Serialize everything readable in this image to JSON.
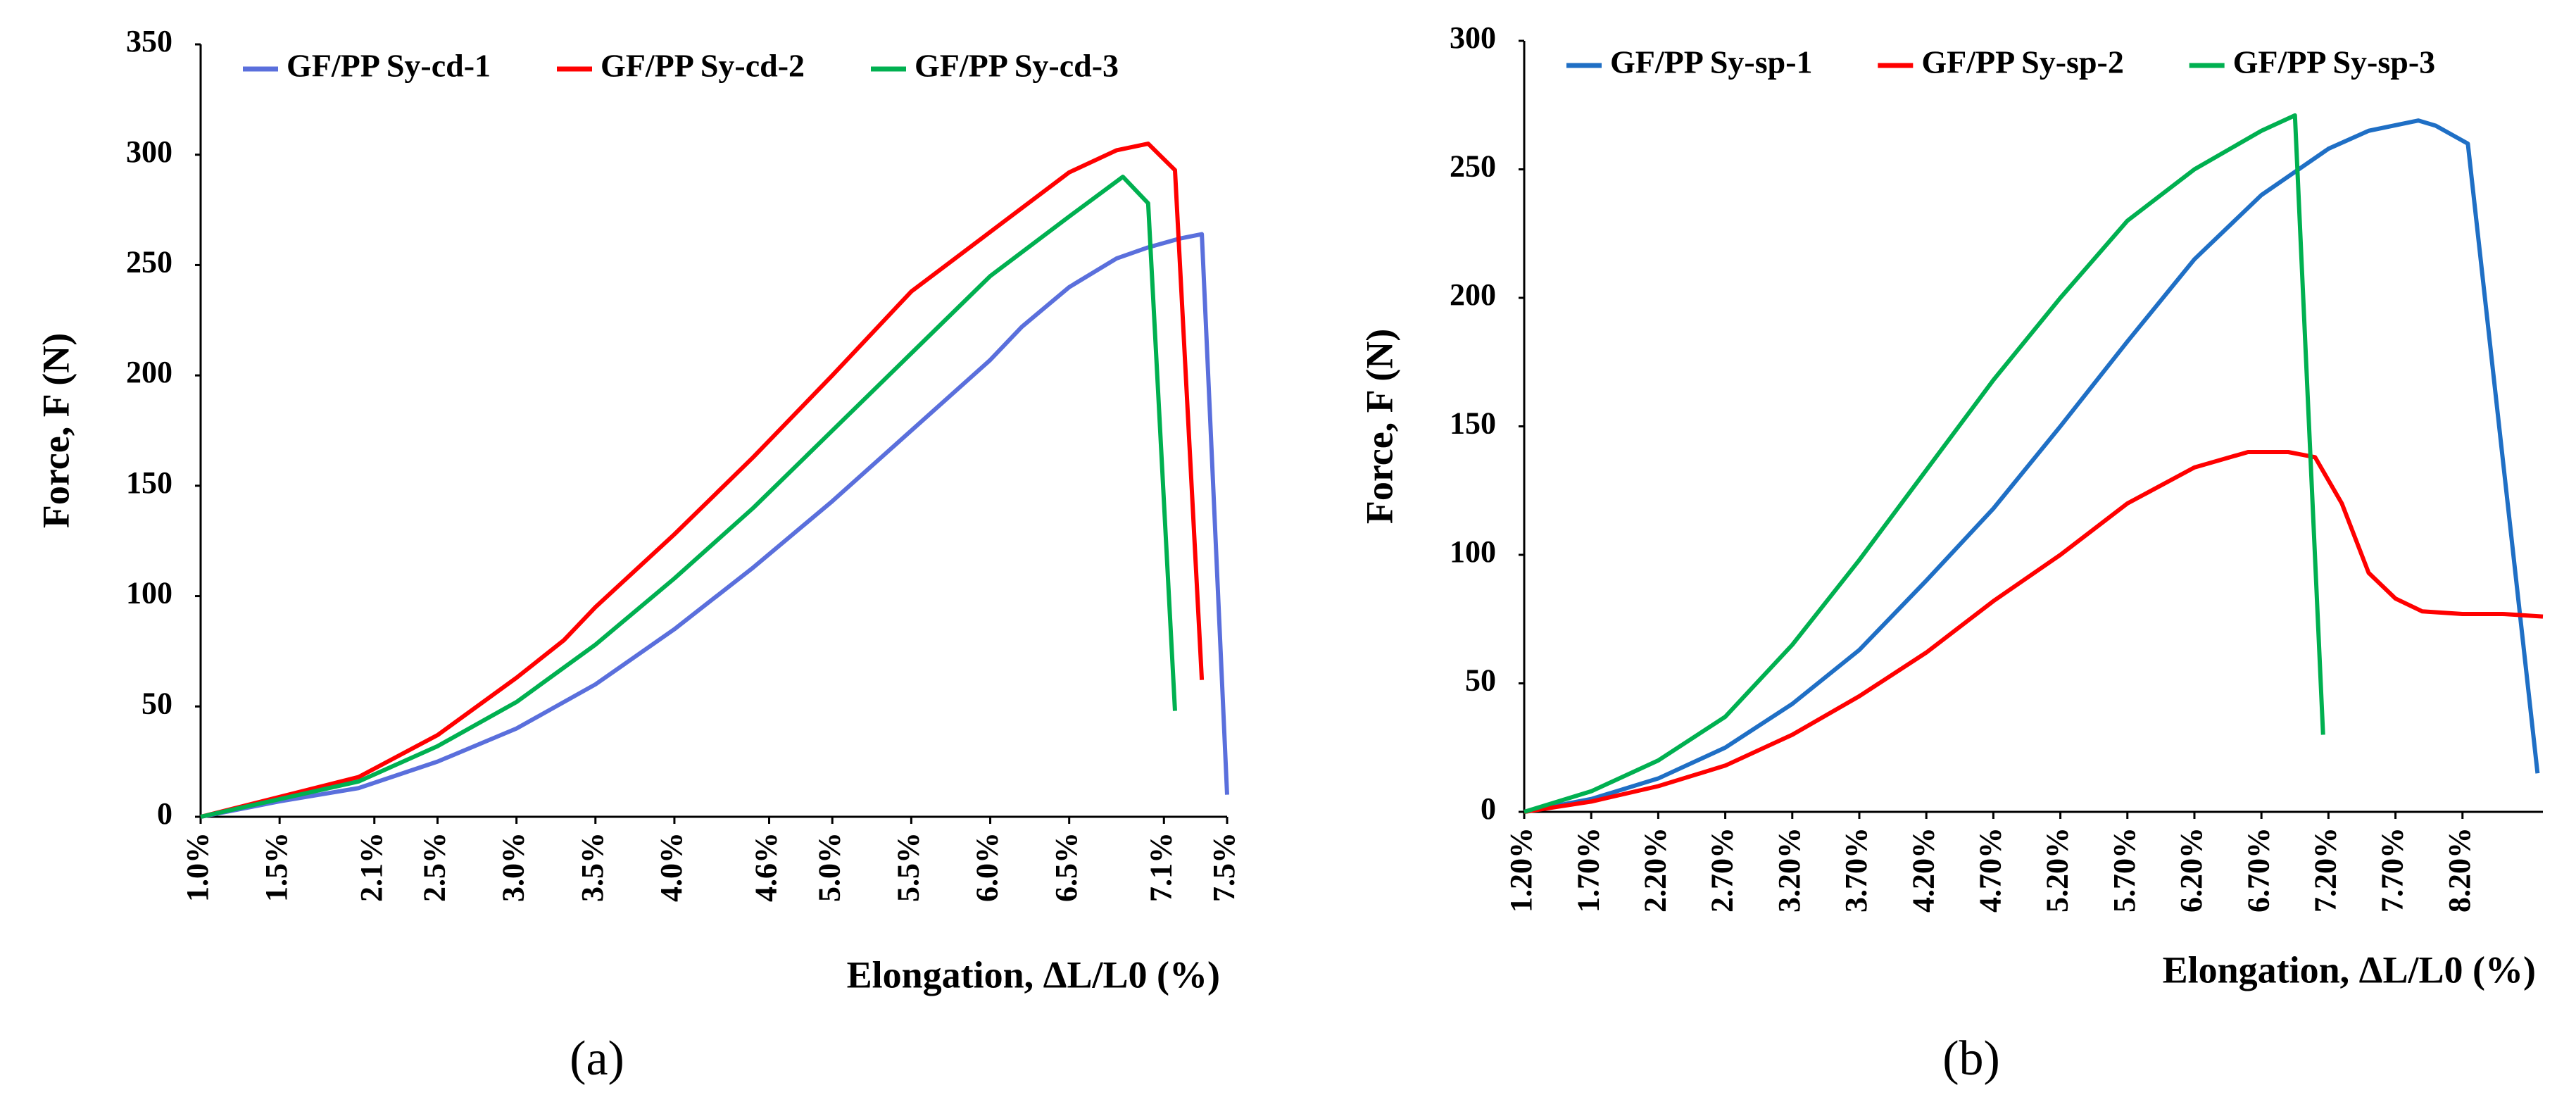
{
  "chart_data": [
    {
      "type": "line",
      "panel_label": "(a)",
      "ylabel": "Force, F (N)",
      "xlabel": "Elongation, ΔL/L0 (%)",
      "xlim": [
        1.0,
        7.5
      ],
      "ylim": [
        0,
        350
      ],
      "xticks": [
        {
          "value": 1.0,
          "label": "1.0%"
        },
        {
          "value": 1.5,
          "label": "1.5%"
        },
        {
          "value": 2.1,
          "label": "2.1%"
        },
        {
          "value": 2.5,
          "label": "2.5%"
        },
        {
          "value": 3.0,
          "label": "3.0%"
        },
        {
          "value": 3.5,
          "label": "3.5%"
        },
        {
          "value": 4.0,
          "label": "4.0%"
        },
        {
          "value": 4.6,
          "label": "4.6%"
        },
        {
          "value": 5.0,
          "label": "5.0%"
        },
        {
          "value": 5.5,
          "label": "5.5%"
        },
        {
          "value": 6.0,
          "label": "6.0%"
        },
        {
          "value": 6.5,
          "label": "6.5%"
        },
        {
          "value": 7.1,
          "label": "7.1%"
        },
        {
          "value": 7.5,
          "label": "7.5%"
        }
      ],
      "yticks": [
        0,
        50,
        100,
        150,
        200,
        250,
        300,
        350
      ],
      "legend": "top",
      "series": [
        {
          "name": "GF/PP Sy-cd-1",
          "color": "#5a6fdc",
          "x": [
            1.0,
            1.5,
            2.0,
            2.5,
            3.0,
            3.5,
            4.0,
            4.5,
            5.0,
            5.5,
            6.0,
            6.2,
            6.5,
            6.8,
            7.0,
            7.2,
            7.34,
            7.5
          ],
          "values": [
            0,
            7,
            13,
            25,
            40,
            60,
            85,
            113,
            143,
            175,
            207,
            222,
            240,
            253,
            258,
            262,
            264,
            10
          ]
        },
        {
          "name": "GF/PP Sy-cd-2",
          "color": "#ff0000",
          "x": [
            1.0,
            1.5,
            2.0,
            2.5,
            3.0,
            3.3,
            3.5,
            4.0,
            4.5,
            5.0,
            5.5,
            6.0,
            6.5,
            6.8,
            7.0,
            7.17,
            7.34
          ],
          "values": [
            0,
            9,
            18,
            37,
            63,
            80,
            95,
            128,
            163,
            200,
            238,
            265,
            292,
            302,
            305,
            293,
            62
          ]
        },
        {
          "name": "GF/PP Sy-cd-3",
          "color": "#00b050",
          "x": [
            1.0,
            1.5,
            2.0,
            2.5,
            3.0,
            3.5,
            4.0,
            4.5,
            5.0,
            5.5,
            6.0,
            6.5,
            6.84,
            7.0,
            7.17
          ],
          "values": [
            0,
            8,
            16,
            32,
            52,
            78,
            108,
            140,
            175,
            210,
            245,
            272,
            290,
            278,
            48
          ]
        }
      ]
    },
    {
      "type": "line",
      "panel_label": "(b)",
      "ylabel": "Force, F (N)",
      "xlabel": "Elongation, ΔL/L0 (%)",
      "xlim": [
        1.2,
        8.8
      ],
      "ylim": [
        0,
        300
      ],
      "xticks": [
        {
          "value": 1.2,
          "label": "1.20%"
        },
        {
          "value": 1.7,
          "label": "1.70%"
        },
        {
          "value": 2.2,
          "label": "2.20%"
        },
        {
          "value": 2.7,
          "label": "2.70%"
        },
        {
          "value": 3.2,
          "label": "3.20%"
        },
        {
          "value": 3.7,
          "label": "3.70%"
        },
        {
          "value": 4.2,
          "label": "4.20%"
        },
        {
          "value": 4.7,
          "label": "4.70%"
        },
        {
          "value": 5.2,
          "label": "5.20%"
        },
        {
          "value": 5.7,
          "label": "5.70%"
        },
        {
          "value": 6.2,
          "label": "6.20%"
        },
        {
          "value": 6.7,
          "label": "6.70%"
        },
        {
          "value": 7.2,
          "label": "7.20%"
        },
        {
          "value": 7.7,
          "label": "7.70%"
        },
        {
          "value": 8.2,
          "label": "8.20%"
        }
      ],
      "yticks": [
        0,
        50,
        100,
        150,
        200,
        250,
        300
      ],
      "legend": "top",
      "series": [
        {
          "name": "GF/PP Sy-sp-1",
          "color": "#1f6fc5",
          "x": [
            1.2,
            1.7,
            2.2,
            2.7,
            3.2,
            3.7,
            4.2,
            4.7,
            5.2,
            5.7,
            6.2,
            6.7,
            7.2,
            7.5,
            7.87,
            8.0,
            8.24,
            8.76
          ],
          "values": [
            0,
            5,
            13,
            25,
            42,
            63,
            90,
            118,
            150,
            183,
            215,
            240,
            258,
            265,
            269,
            267,
            260,
            15
          ]
        },
        {
          "name": "GF/PP Sy-sp-2",
          "color": "#ff0000",
          "x": [
            1.2,
            1.7,
            2.2,
            2.7,
            3.2,
            3.7,
            4.2,
            4.7,
            5.2,
            5.7,
            6.2,
            6.6,
            6.9,
            7.1,
            7.3,
            7.5,
            7.7,
            7.9,
            8.2,
            8.5,
            8.8
          ],
          "values": [
            0,
            4,
            10,
            18,
            30,
            45,
            62,
            82,
            100,
            120,
            134,
            140,
            140,
            138,
            120,
            93,
            83,
            78,
            77,
            77,
            76
          ]
        },
        {
          "name": "GF/PP Sy-sp-3",
          "color": "#00b050",
          "x": [
            1.2,
            1.7,
            2.2,
            2.7,
            3.2,
            3.7,
            4.2,
            4.7,
            5.2,
            5.7,
            6.2,
            6.7,
            6.95,
            7.16
          ],
          "values": [
            0,
            8,
            20,
            37,
            65,
            98,
            133,
            168,
            200,
            230,
            250,
            265,
            271,
            30
          ]
        }
      ]
    }
  ]
}
